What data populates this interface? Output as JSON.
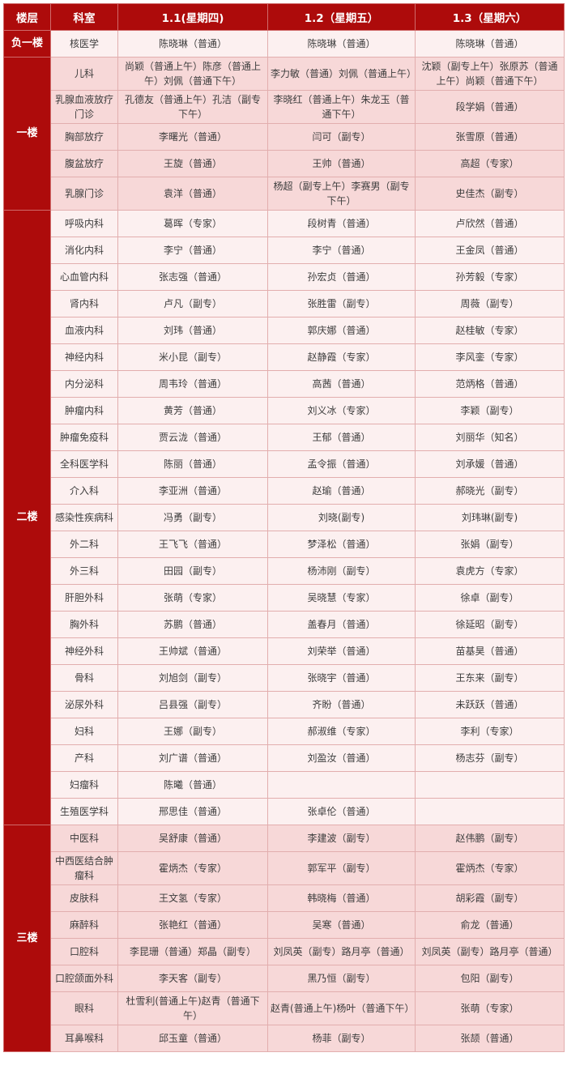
{
  "colors": {
    "header_bg": "#ad0b0b",
    "floor_column_bg": "#ad0b0b",
    "pink_row_bg": "#f7d8d8",
    "light_row_bg": "#fcf0f0",
    "grid_border": "#e2aeae",
    "header_text": "#ffffff",
    "body_text": "#3d3d3d"
  },
  "header": {
    "columns": [
      "楼层",
      "科室",
      "1.1(星期四)",
      "1.2（星期五）",
      "1.3（星期六）"
    ]
  },
  "floors": [
    {
      "name": "负一楼",
      "rows": [
        {
          "dept": "核医学",
          "d1": "陈晓琳（普通）",
          "d2": "陈晓琳（普通）",
          "d3": "陈晓琳（普通）"
        }
      ]
    },
    {
      "name": "一楼",
      "rows": [
        {
          "dept": "儿科",
          "d1": "尚颖（普通上午）陈彦（普通上午）刘佩（普通下午）",
          "d2": "李力敏（普通）刘佩（普通上午）",
          "d3": "沈颖（副专上午）张原苏（普通上午）尚颖（普通下午）"
        },
        {
          "dept": "乳腺血液放疗门诊",
          "d1": "孔德友（普通上午）孔洁（副专下午）",
          "d2": "李晓红（普通上午）朱龙玉（普通下午）",
          "d3": "段学娟（普通）"
        },
        {
          "dept": "胸部放疗",
          "d1": "李曙光（普通）",
          "d2": "闫可（副专）",
          "d3": "张雪原（普通）"
        },
        {
          "dept": "腹盆放疗",
          "d1": "王旋（普通）",
          "d2": "王帅（普通）",
          "d3": "高超（专家）"
        },
        {
          "dept": "乳腺门诊",
          "d1": "袁洋（普通）",
          "d2": "杨超（副专上午）李赛男（副专下午）",
          "d3": "史佳杰（副专）"
        }
      ]
    },
    {
      "name": "二楼",
      "rows": [
        {
          "dept": "呼吸内科",
          "d1": "葛晖（专家）",
          "d2": "段树青（普通）",
          "d3": "卢欣然（普通）"
        },
        {
          "dept": "消化内科",
          "d1": "李宁（普通）",
          "d2": "李宁（普通）",
          "d3": "王金凤（普通）"
        },
        {
          "dept": "心血管内科",
          "d1": "张志强（普通）",
          "d2": "孙宏贞（普通）",
          "d3": "孙芳毅（专家）"
        },
        {
          "dept": "肾内科",
          "d1": "卢凡（副专）",
          "d2": "张胜雷（副专）",
          "d3": "周薇（副专）"
        },
        {
          "dept": "血液内科",
          "d1": "刘玮（普通）",
          "d2": "郭庆娜（普通）",
          "d3": "赵桂敏（专家）"
        },
        {
          "dept": "神经内科",
          "d1": "米小昆（副专）",
          "d2": "赵静霞（专家）",
          "d3": "李风銮（专家）"
        },
        {
          "dept": "内分泌科",
          "d1": "周韦玲（普通）",
          "d2": "高茜（普通）",
          "d3": "范炳格（普通）"
        },
        {
          "dept": "肿瘤内科",
          "d1": "黄芳（普通）",
          "d2": "刘义冰（专家）",
          "d3": "李颖（副专）"
        },
        {
          "dept": "肿瘤免疫科",
          "d1": "贾云泷（普通）",
          "d2": "王郁（普通）",
          "d3": "刘丽华（知名）"
        },
        {
          "dept": "全科医学科",
          "d1": "陈丽（普通）",
          "d2": "孟令振（普通）",
          "d3": "刘承媛（普通）"
        },
        {
          "dept": "介入科",
          "d1": "李亚洲（普通）",
          "d2": "赵瑜（普通）",
          "d3": "郝晓光（副专）"
        },
        {
          "dept": "感染性疾病科",
          "d1": "冯勇（副专）",
          "d2": "刘晓(副专)",
          "d3": "刘玮琳(副专)"
        },
        {
          "dept": "外二科",
          "d1": "王飞飞（普通）",
          "d2": "梦泽松（普通）",
          "d3": "张娟（副专）"
        },
        {
          "dept": "外三科",
          "d1": "田园（副专）",
          "d2": "杨沛刚（副专）",
          "d3": "袁虎方（专家）"
        },
        {
          "dept": "肝胆外科",
          "d1": "张萌（专家）",
          "d2": "吴晓慧（专家）",
          "d3": "徐卓（副专）"
        },
        {
          "dept": "胸外科",
          "d1": "苏鹏（普通）",
          "d2": "盖春月（普通）",
          "d3": "徐延昭（副专）"
        },
        {
          "dept": "神经外科",
          "d1": "王帅斌（普通）",
          "d2": "刘荣举（普通）",
          "d3": "苗基昊（普通）"
        },
        {
          "dept": "骨科",
          "d1": "刘旭剑（副专）",
          "d2": "张晓宇（普通）",
          "d3": "王东来（副专）"
        },
        {
          "dept": "泌尿外科",
          "d1": "吕县强（副专）",
          "d2": "齐盼（普通）",
          "d3": "未跃跃（普通）"
        },
        {
          "dept": "妇科",
          "d1": "王娜（副专）",
          "d2": "郝淑维（专家）",
          "d3": "李利（专家）"
        },
        {
          "dept": "产科",
          "d1": "刘广谱（普通）",
          "d2": "刘盈汝（普通）",
          "d3": "杨志芬（副专）"
        },
        {
          "dept": "妇瘤科",
          "d1": "陈曦（普通）",
          "d2": "",
          "d3": ""
        },
        {
          "dept": "生殖医学科",
          "d1": "邢思佳（普通）",
          "d2": "张卓伦（普通）",
          "d3": ""
        }
      ]
    },
    {
      "name": "三楼",
      "rows": [
        {
          "dept": "中医科",
          "d1": "吴舒康（普通）",
          "d2": "李建波（副专）",
          "d3": "赵伟鹏（副专）"
        },
        {
          "dept": "中西医结合肿瘤科",
          "d1": "霍炳杰（专家）",
          "d2": "郭军平（副专）",
          "d3": "霍炳杰（专家）"
        },
        {
          "dept": "皮肤科",
          "d1": "王文氢（专家）",
          "d2": "韩晓梅（普通）",
          "d3": "胡彩霞（副专）"
        },
        {
          "dept": "麻醉科",
          "d1": "张艳红（普通）",
          "d2": "吴寒（普通）",
          "d3": "俞龙（普通）"
        },
        {
          "dept": "口腔科",
          "d1": "李昆珊（普通）郑晶（副专）",
          "d2": "刘凤英（副专）路月亭（普通）",
          "d3": "刘凤英（副专）路月亭（普通）"
        },
        {
          "dept": "口腔颌面外科",
          "d1": "李天客（副专）",
          "d2": "黑乃恒（副专）",
          "d3": "包阳（副专）"
        },
        {
          "dept": "眼科",
          "d1": "杜雪利(普通上午)赵青（普通下午）",
          "d2": "赵青(普通上午)杨叶（普通下午）",
          "d3": "张萌（专家）"
        },
        {
          "dept": "耳鼻喉科",
          "d1": "邱玉童（普通）",
          "d2": "杨菲（副专）",
          "d3": "张颉（普通）"
        }
      ]
    }
  ]
}
